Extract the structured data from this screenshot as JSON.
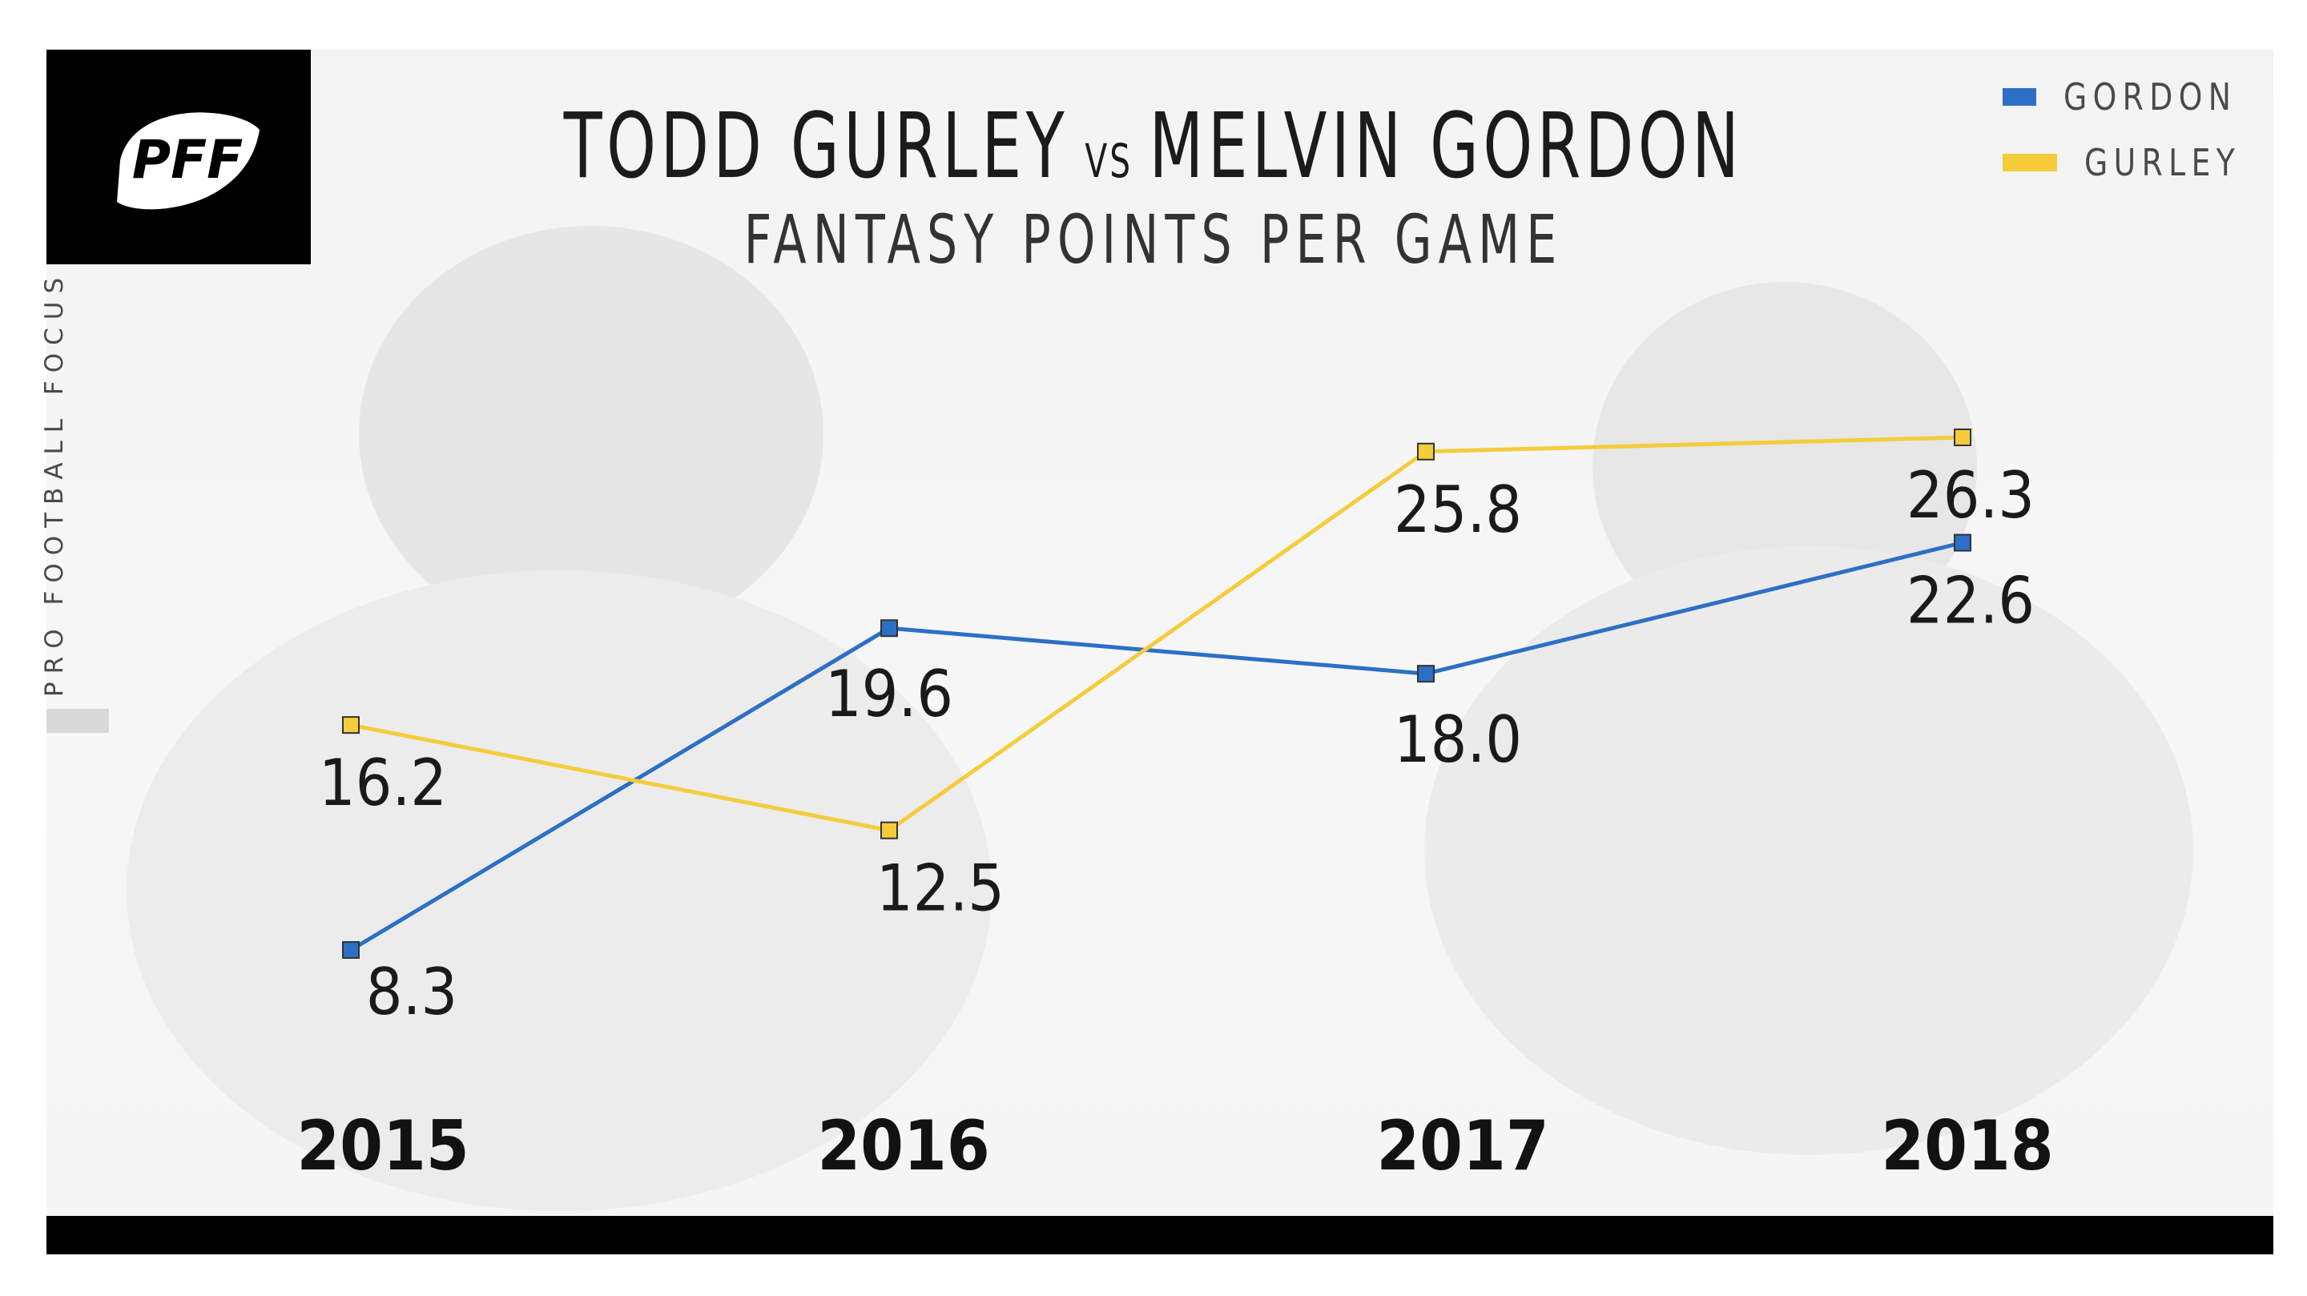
{
  "brand": {
    "logo_text": "PFF",
    "side_text": "PRO FOOTBALL FOCUS"
  },
  "title": {
    "part1": "TODD GURLEY",
    "vs": "VS",
    "part2": "MELVIN GORDON",
    "subtitle": "FANTASY POINTS PER GAME"
  },
  "colors": {
    "gordon": "#2c6fc6",
    "gurley": "#f5cc3c",
    "background": "#f5f5f5"
  },
  "chart_data": {
    "type": "line",
    "title": "TODD GURLEY VS MELVIN GORDON",
    "subtitle": "FANTASY POINTS PER GAME",
    "x": [
      "2015",
      "2016",
      "2017",
      "2018"
    ],
    "series": [
      {
        "name": "GORDON",
        "color": "#2c6fc6",
        "values": [
          8.3,
          19.6,
          18.0,
          22.6
        ],
        "labels": [
          "8.3",
          "19.6",
          "18.0",
          "22.6"
        ]
      },
      {
        "name": "GURLEY",
        "color": "#f5cc3c",
        "values": [
          16.2,
          12.5,
          25.8,
          26.3
        ],
        "labels": [
          "16.2",
          "12.5",
          "25.8",
          "26.3"
        ]
      }
    ],
    "ylim": [
      0,
      30
    ],
    "grid": false,
    "legend": "top-right",
    "xlabel": "",
    "ylabel": ""
  }
}
